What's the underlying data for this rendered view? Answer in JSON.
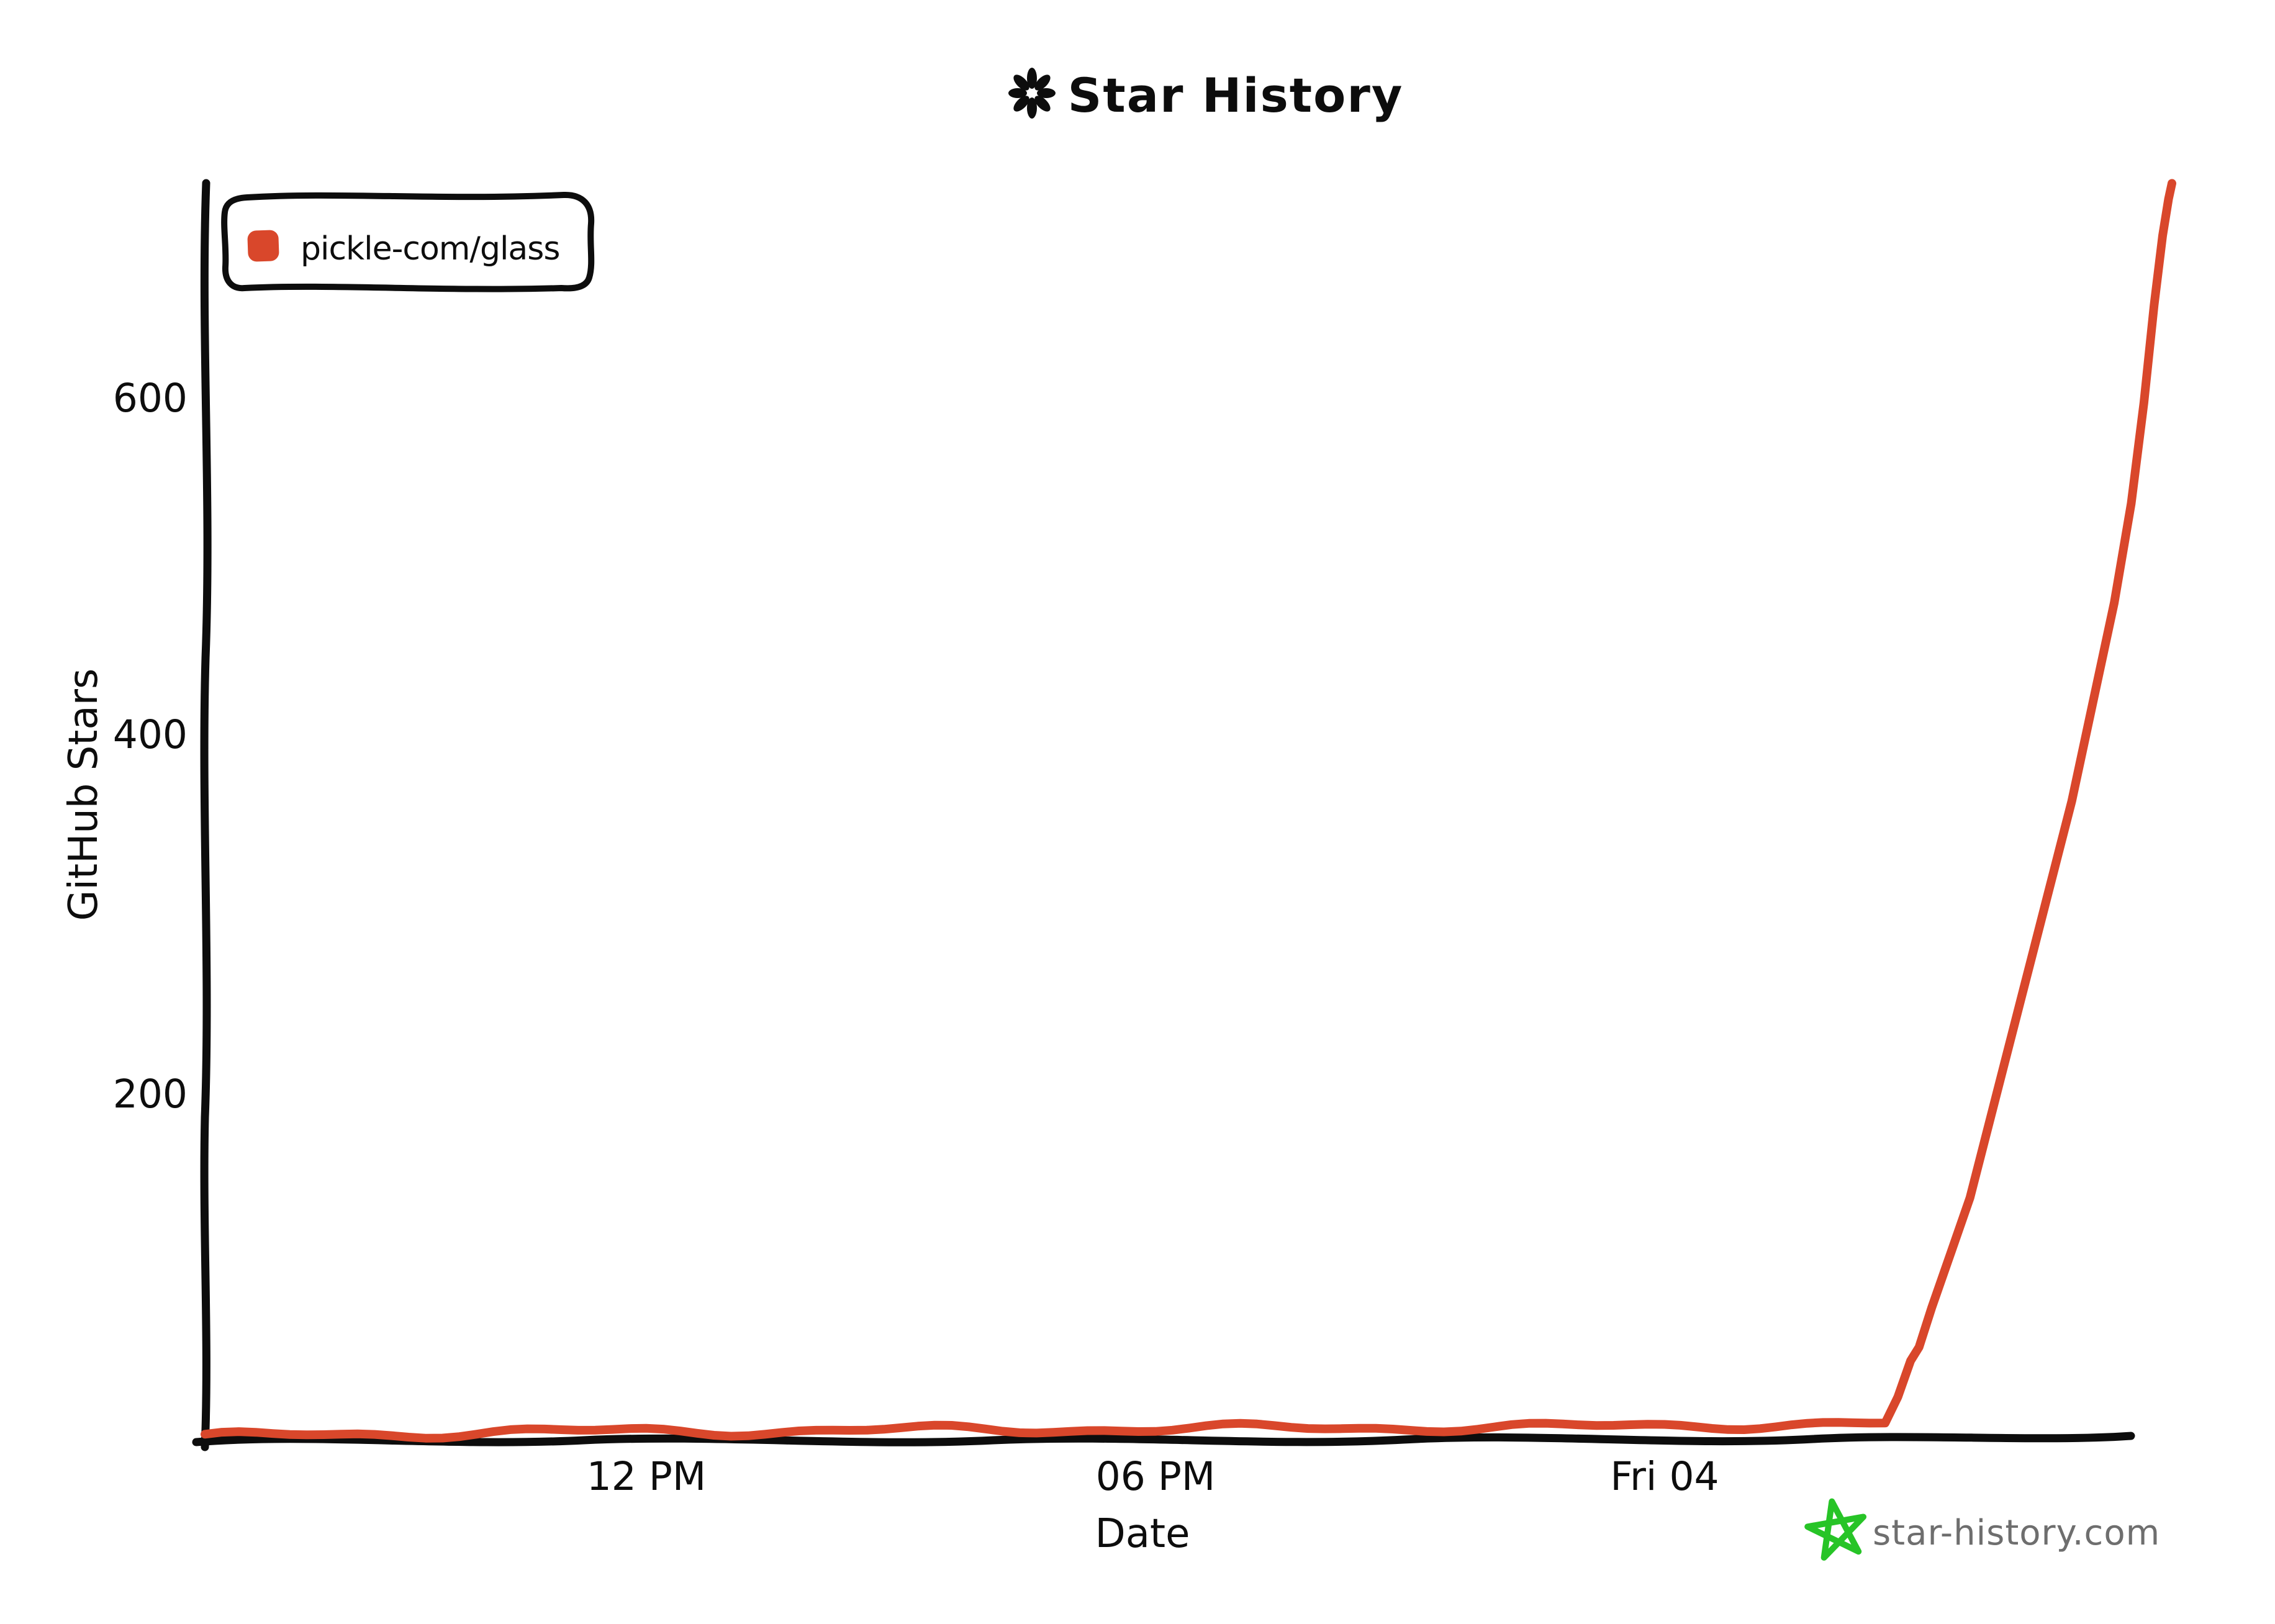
{
  "header": {
    "title": "Star History",
    "icon": "asterisk"
  },
  "legend": {
    "items": [
      {
        "label": "pickle-com/glass",
        "color": "#d9472b"
      }
    ]
  },
  "watermark": {
    "text": "star-history.com",
    "star_color": "#27c427",
    "text_color": "#6e6e6e"
  },
  "chart_data": {
    "type": "line",
    "title": "Star History",
    "xlabel": "Date",
    "ylabel": "GitHub Stars",
    "grid": false,
    "legend_position": "top-left",
    "background": "#ffffff",
    "style": "hand-drawn-xkcd",
    "x_axis": {
      "unit": "hours-since-Thu-00:00",
      "range": [
        6.8,
        30.1
      ],
      "ticks": [
        {
          "label": "12 PM",
          "h": 12
        },
        {
          "label": "06 PM",
          "h": 18
        },
        {
          "label": "Fri 04",
          "h": 24
        }
      ]
    },
    "y_axis": {
      "range": [
        0,
        730
      ],
      "ticks": [
        {
          "label": "200",
          "value": 200
        },
        {
          "label": "400",
          "value": 400
        },
        {
          "label": "600",
          "value": 600
        }
      ]
    },
    "series": [
      {
        "name": "pickle-com/glass",
        "color": "#d9472b",
        "final_stars": 723,
        "points": [
          [
            6.8,
            2
          ],
          [
            8,
            4
          ],
          [
            10,
            5
          ],
          [
            12,
            6
          ],
          [
            14,
            6
          ],
          [
            16,
            7
          ],
          [
            18,
            7
          ],
          [
            20,
            8
          ],
          [
            22,
            8
          ],
          [
            24,
            9
          ],
          [
            25.5,
            10
          ],
          [
            26.6,
            10
          ],
          [
            26.75,
            25
          ],
          [
            26.9,
            46
          ],
          [
            27.0,
            54
          ],
          [
            27.15,
            77
          ],
          [
            27.6,
            140
          ],
          [
            27.9,
            197
          ],
          [
            28.2,
            254
          ],
          [
            28.5,
            311
          ],
          [
            28.8,
            368
          ],
          [
            29.05,
            425
          ],
          [
            29.3,
            482
          ],
          [
            29.5,
            539
          ],
          [
            29.65,
            597
          ],
          [
            29.77,
            653
          ],
          [
            29.87,
            693
          ],
          [
            29.94,
            714
          ],
          [
            29.98,
            723
          ]
        ]
      }
    ]
  }
}
